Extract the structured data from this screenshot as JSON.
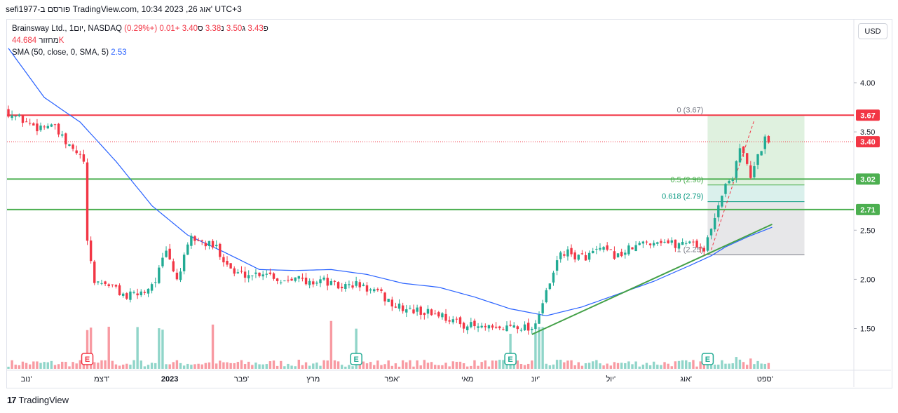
{
  "header": {
    "title": "sefi1977-פורסם ב TradingView.com, 10:34 2023 ,26 אוג' UTC+3"
  },
  "legend": {
    "symbol": "Brainsway Ltd., 1יום, NASDAQ",
    "o_label": "פ",
    "o_value": "3.43",
    "h_label": "ג",
    "h_value": "3.50",
    "l_label": "נ",
    "l_value": "3.38",
    "c_label": "ס",
    "c_value": "3.40",
    "change": "+0.01 (+0.29%)",
    "volume_label": "מחזור",
    "volume_value": "44.684K",
    "sma_label": "SMA (50, close, 0, SMA, 5)",
    "sma_value": "2.53"
  },
  "currency_button": "USD",
  "footer": {
    "brand": "TradingView",
    "logo": "17"
  },
  "chart_data": {
    "type": "candlestick",
    "symbol": "Brainsway Ltd.",
    "exchange": "NASDAQ",
    "interval": "1יום",
    "y_ticks": [
      "4.00",
      "3.50",
      "2.50",
      "2.00",
      "1.50"
    ],
    "y_tick_values": [
      4.0,
      3.5,
      2.5,
      2.0,
      1.5
    ],
    "ylim": [
      1.0,
      4.6
    ],
    "x_ticks": [
      "נוב'",
      "דצמ'",
      "2023",
      "פבר'",
      "מרץ",
      "אפר'",
      "מאי",
      "יונ'",
      "יול'",
      "אוג'",
      "ספט'"
    ],
    "x_tick_index": [
      5,
      26,
      45,
      65,
      85,
      107,
      128,
      147,
      168,
      189,
      211
    ],
    "last_price": "3.40",
    "last_price_value": 3.4,
    "levels": [
      {
        "value": 3.67,
        "label": "3.67",
        "color": "#f23645"
      },
      {
        "value": 3.02,
        "label": "3.02",
        "color": "#4caf50"
      },
      {
        "value": 2.71,
        "label": "2.71",
        "color": "#4caf50"
      }
    ],
    "fibonacci": [
      {
        "label": "0 (3.67)",
        "value": 3.67,
        "color": "#787b86"
      },
      {
        "label": "0.5 (2.96)",
        "value": 2.96,
        "color": "#4caf50"
      },
      {
        "label": "0.618 (2.79)",
        "value": 2.79,
        "color": "#089981"
      },
      {
        "label": "1 (2.25)",
        "value": 2.25,
        "color": "#787b86"
      }
    ],
    "trendline": {
      "from": {
        "i": 146,
        "v": 1.44
      },
      "to": {
        "i": 213,
        "v": 2.56
      },
      "color": "#43a047"
    },
    "earnings_markers": [
      {
        "i": 22,
        "label": "E",
        "color": "#f23645"
      },
      {
        "i": 97,
        "label": "E",
        "color": "#22ab94"
      },
      {
        "i": 140,
        "label": "E",
        "color": "#22ab94"
      },
      {
        "i": 195,
        "label": "E",
        "color": "#22ab94"
      }
    ],
    "anchors": [
      {
        "i": 0,
        "v": 3.7
      },
      {
        "i": 4,
        "v": 3.62
      },
      {
        "i": 8,
        "v": 3.55
      },
      {
        "i": 12,
        "v": 3.58
      },
      {
        "i": 16,
        "v": 3.38
      },
      {
        "i": 20,
        "v": 3.25
      },
      {
        "i": 21,
        "v": 3.2
      },
      {
        "i": 22,
        "v": 2.35
      },
      {
        "i": 24,
        "v": 1.98
      },
      {
        "i": 28,
        "v": 1.95
      },
      {
        "i": 33,
        "v": 1.82
      },
      {
        "i": 38,
        "v": 1.88
      },
      {
        "i": 41,
        "v": 2.0
      },
      {
        "i": 44,
        "v": 2.28
      },
      {
        "i": 47,
        "v": 2.0
      },
      {
        "i": 51,
        "v": 2.42
      },
      {
        "i": 58,
        "v": 2.32
      },
      {
        "i": 63,
        "v": 2.06
      },
      {
        "i": 68,
        "v": 2.05
      },
      {
        "i": 72,
        "v": 2.08
      },
      {
        "i": 76,
        "v": 1.98
      },
      {
        "i": 80,
        "v": 2.05
      },
      {
        "i": 83,
        "v": 1.95
      },
      {
        "i": 87,
        "v": 2.0
      },
      {
        "i": 92,
        "v": 1.92
      },
      {
        "i": 97,
        "v": 1.95
      },
      {
        "i": 104,
        "v": 1.84
      },
      {
        "i": 108,
        "v": 1.72
      },
      {
        "i": 113,
        "v": 1.68
      },
      {
        "i": 120,
        "v": 1.65
      },
      {
        "i": 125,
        "v": 1.56
      },
      {
        "i": 130,
        "v": 1.52
      },
      {
        "i": 136,
        "v": 1.48
      },
      {
        "i": 141,
        "v": 1.54
      },
      {
        "i": 146,
        "v": 1.5
      },
      {
        "i": 148,
        "v": 1.66
      },
      {
        "i": 151,
        "v": 1.95
      },
      {
        "i": 154,
        "v": 2.28
      },
      {
        "i": 160,
        "v": 2.22
      },
      {
        "i": 165,
        "v": 2.3
      },
      {
        "i": 170,
        "v": 2.24
      },
      {
        "i": 174,
        "v": 2.32
      },
      {
        "i": 178,
        "v": 2.38
      },
      {
        "i": 182,
        "v": 2.4
      },
      {
        "i": 186,
        "v": 2.35
      },
      {
        "i": 190,
        "v": 2.4
      },
      {
        "i": 194,
        "v": 2.3
      },
      {
        "i": 196,
        "v": 2.5
      },
      {
        "i": 198,
        "v": 2.78
      },
      {
        "i": 200,
        "v": 2.95
      },
      {
        "i": 202,
        "v": 3.05
      },
      {
        "i": 204,
        "v": 3.36
      },
      {
        "i": 206,
        "v": 3.15
      },
      {
        "i": 207,
        "v": 3.02
      },
      {
        "i": 209,
        "v": 3.25
      },
      {
        "i": 211,
        "v": 3.43
      },
      {
        "i": 212,
        "v": 3.4
      }
    ],
    "sma50": [
      {
        "i": 0,
        "v": 4.35
      },
      {
        "i": 10,
        "v": 3.85
      },
      {
        "i": 20,
        "v": 3.6
      },
      {
        "i": 30,
        "v": 3.2
      },
      {
        "i": 40,
        "v": 2.75
      },
      {
        "i": 50,
        "v": 2.45
      },
      {
        "i": 60,
        "v": 2.28
      },
      {
        "i": 70,
        "v": 2.1
      },
      {
        "i": 80,
        "v": 2.09
      },
      {
        "i": 90,
        "v": 2.1
      },
      {
        "i": 100,
        "v": 2.05
      },
      {
        "i": 110,
        "v": 1.96
      },
      {
        "i": 120,
        "v": 1.92
      },
      {
        "i": 130,
        "v": 1.82
      },
      {
        "i": 140,
        "v": 1.7
      },
      {
        "i": 150,
        "v": 1.63
      },
      {
        "i": 160,
        "v": 1.72
      },
      {
        "i": 170,
        "v": 1.85
      },
      {
        "i": 180,
        "v": 1.98
      },
      {
        "i": 190,
        "v": 2.14
      },
      {
        "i": 196,
        "v": 2.24
      },
      {
        "i": 200,
        "v": 2.33
      },
      {
        "i": 206,
        "v": 2.43
      },
      {
        "i": 213,
        "v": 2.53
      }
    ],
    "series": [
      {
        "name": "SMA (50, close, 0, SMA, 5)",
        "value": 2.53,
        "color": "#2962ff"
      },
      {
        "name": "מחזור",
        "value": "44.684K"
      }
    ]
  }
}
